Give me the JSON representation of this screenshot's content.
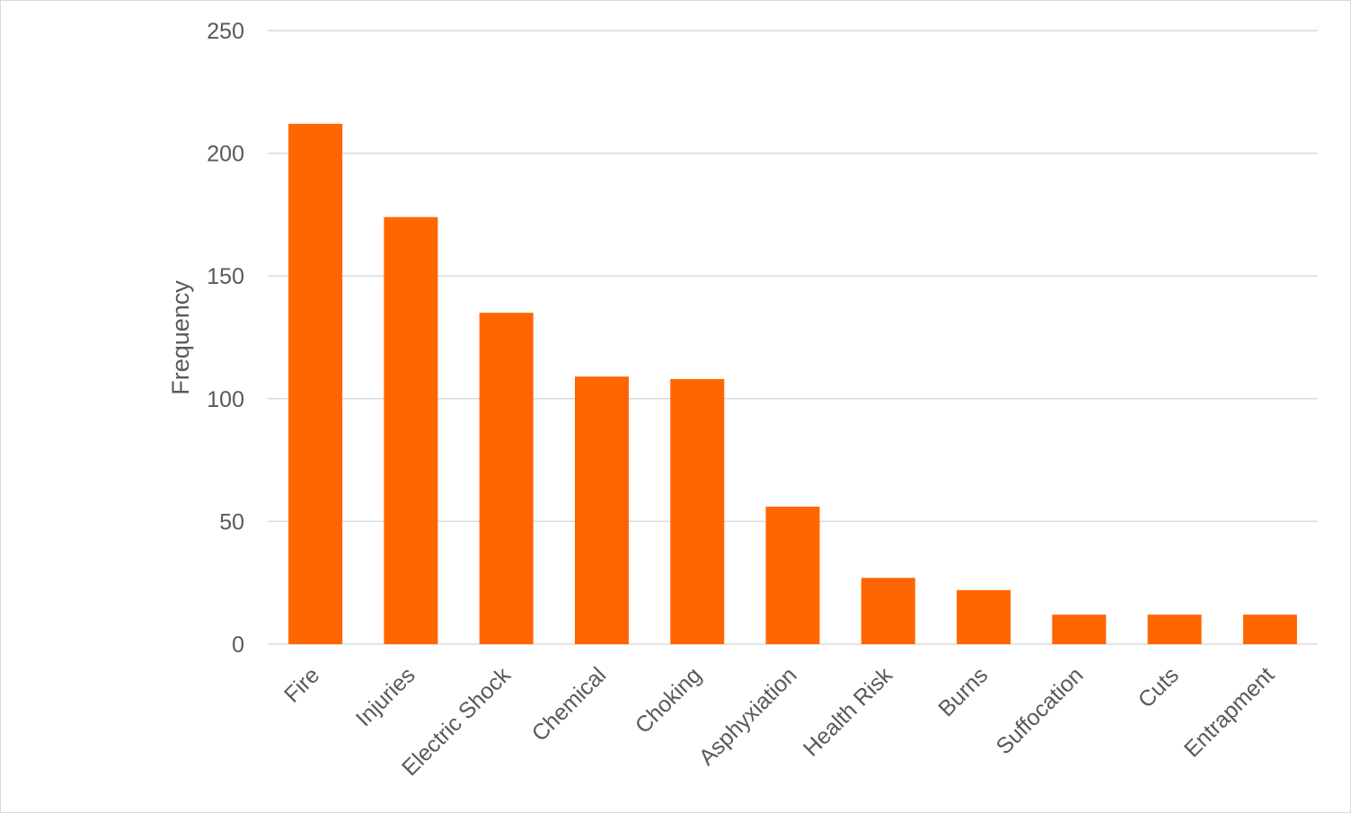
{
  "chart_data": {
    "type": "bar",
    "title": "",
    "xlabel": "",
    "ylabel": "Frequency",
    "categories": [
      "Fire",
      "Injuries",
      "Electric Shock",
      "Chemical",
      "Choking",
      "Asphyxiation",
      "Health Risk",
      "Burns",
      "Suffocation",
      "Cuts",
      "Entrapment"
    ],
    "values": [
      212,
      174,
      135,
      109,
      108,
      56,
      27,
      22,
      12,
      12,
      12
    ],
    "ylim": [
      0,
      250
    ],
    "yticks": [
      0,
      50,
      100,
      150,
      200,
      250
    ],
    "grid": true,
    "legend": "none",
    "colors": {
      "bar": "#FF6600",
      "grid": "#D9D9D9",
      "text": "#595959",
      "border": "#D9D9D9"
    }
  }
}
